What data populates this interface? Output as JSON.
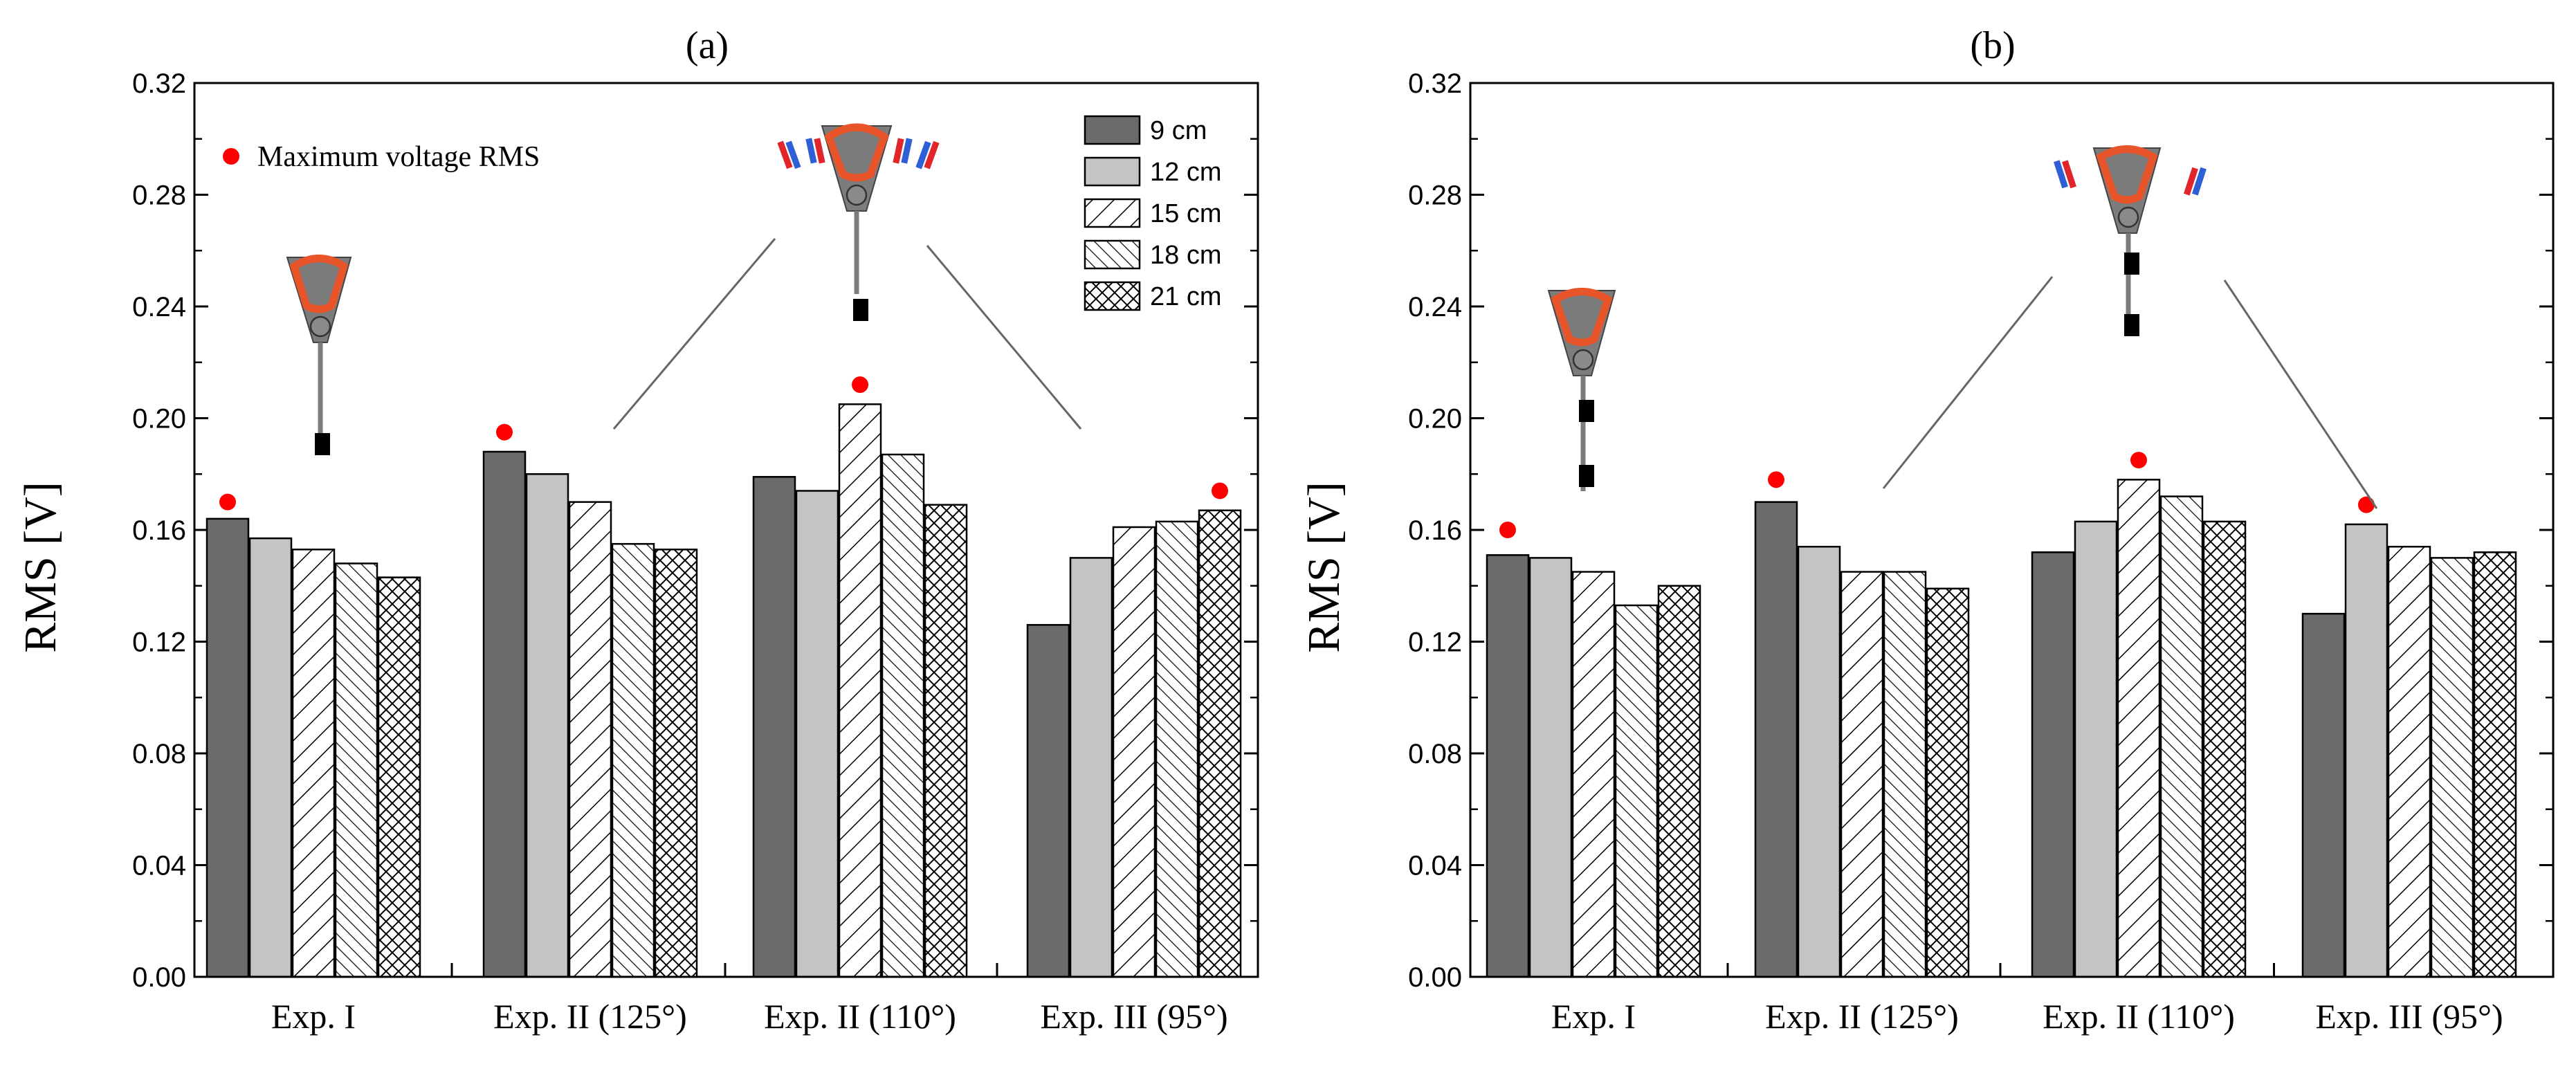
{
  "chart_data": [
    {
      "panel": "(a)",
      "type": "bar",
      "categories": [
        "Exp. I",
        "Exp. II (125°)",
        "Exp. II (110°)",
        "Exp. III (95°)"
      ],
      "series": [
        {
          "name": "9 cm",
          "values": [
            0.164,
            0.188,
            0.179,
            0.126
          ]
        },
        {
          "name": "12 cm",
          "values": [
            0.157,
            0.18,
            0.174,
            0.15
          ]
        },
        {
          "name": "15 cm",
          "values": [
            0.153,
            0.17,
            0.205,
            0.161
          ]
        },
        {
          "name": "18 cm",
          "values": [
            0.148,
            0.155,
            0.187,
            0.163
          ]
        },
        {
          "name": "21 cm",
          "values": [
            0.143,
            0.153,
            0.169,
            0.167
          ]
        }
      ],
      "max_markers": [
        0.17,
        0.195,
        0.212,
        0.174
      ],
      "ylabel": "RMS [V]",
      "xlabel": "",
      "ylim": [
        0.0,
        0.32
      ],
      "yticks": [
        "0.00",
        "0.04",
        "0.08",
        "0.12",
        "0.16",
        "0.20",
        "0.24",
        "0.28",
        "0.32"
      ],
      "legend": {
        "placement": "top-right",
        "entries": [
          "9 cm",
          "12 cm",
          "15 cm",
          "18 cm",
          "21 cm"
        ]
      },
      "annotation": "Maximum voltage RMS"
    },
    {
      "panel": "(b)",
      "type": "bar",
      "categories": [
        "Exp. I",
        "Exp. II (125°)",
        "Exp. II (110°)",
        "Exp. III (95°)"
      ],
      "series": [
        {
          "name": "9 cm",
          "values": [
            0.151,
            0.17,
            0.152,
            0.13
          ]
        },
        {
          "name": "12 cm",
          "values": [
            0.15,
            0.154,
            0.163,
            0.162
          ]
        },
        {
          "name": "15 cm",
          "values": [
            0.145,
            0.145,
            0.178,
            0.154
          ]
        },
        {
          "name": "18 cm",
          "values": [
            0.133,
            0.145,
            0.172,
            0.15
          ]
        },
        {
          "name": "21 cm",
          "values": [
            0.14,
            0.139,
            0.163,
            0.152
          ]
        }
      ],
      "max_markers": [
        0.16,
        0.178,
        0.185,
        0.169
      ],
      "ylabel": "RMS [V]",
      "xlabel": "",
      "ylim": [
        0.0,
        0.32
      ],
      "yticks": [
        "0.00",
        "0.04",
        "0.08",
        "0.12",
        "0.16",
        "0.20",
        "0.24",
        "0.28",
        "0.32"
      ]
    }
  ],
  "colors": {
    "marker": "#ff0000",
    "bar_dark": "#6b6b6b",
    "bar_light": "#c4c4c4",
    "bar_white": "#ffffff",
    "device_orange": "#e8552a",
    "device_grey": "#7c7c7c",
    "magnet_red": "#e0262b",
    "magnet_blue": "#2e5fd6"
  }
}
